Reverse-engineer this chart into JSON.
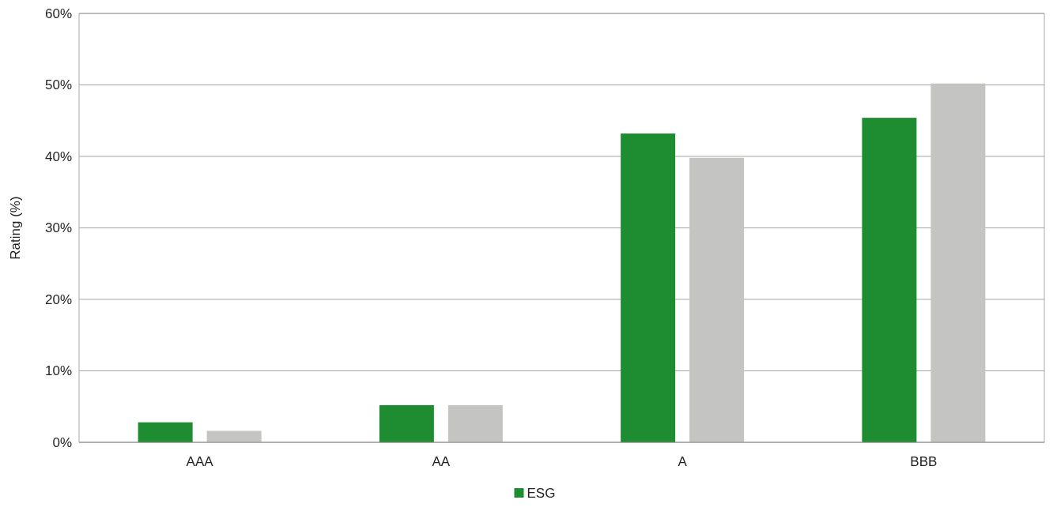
{
  "chart_data": {
    "type": "bar",
    "ylabel": "Rating (%)",
    "categories": [
      "AAA",
      "AA",
      "A",
      "BBB"
    ],
    "series": [
      {
        "name": "ESG",
        "color": "#1e8c30",
        "values": [
          2.8,
          5.2,
          43.2,
          45.4
        ]
      },
      {
        "color": "#c4c4c2",
        "values": [
          1.6,
          5.2,
          39.8,
          50.2
        ]
      }
    ],
    "ylim": [
      0,
      60
    ],
    "yticks": [
      {
        "value": 0,
        "label": "0%"
      },
      {
        "value": 10,
        "label": "10%"
      },
      {
        "value": 20,
        "label": "20%"
      },
      {
        "value": 30,
        "label": "30%"
      },
      {
        "value": 40,
        "label": "40%"
      },
      {
        "value": 50,
        "label": "50%"
      },
      {
        "value": 60,
        "label": "60%"
      }
    ],
    "grid": "y",
    "legend": "bottom"
  }
}
